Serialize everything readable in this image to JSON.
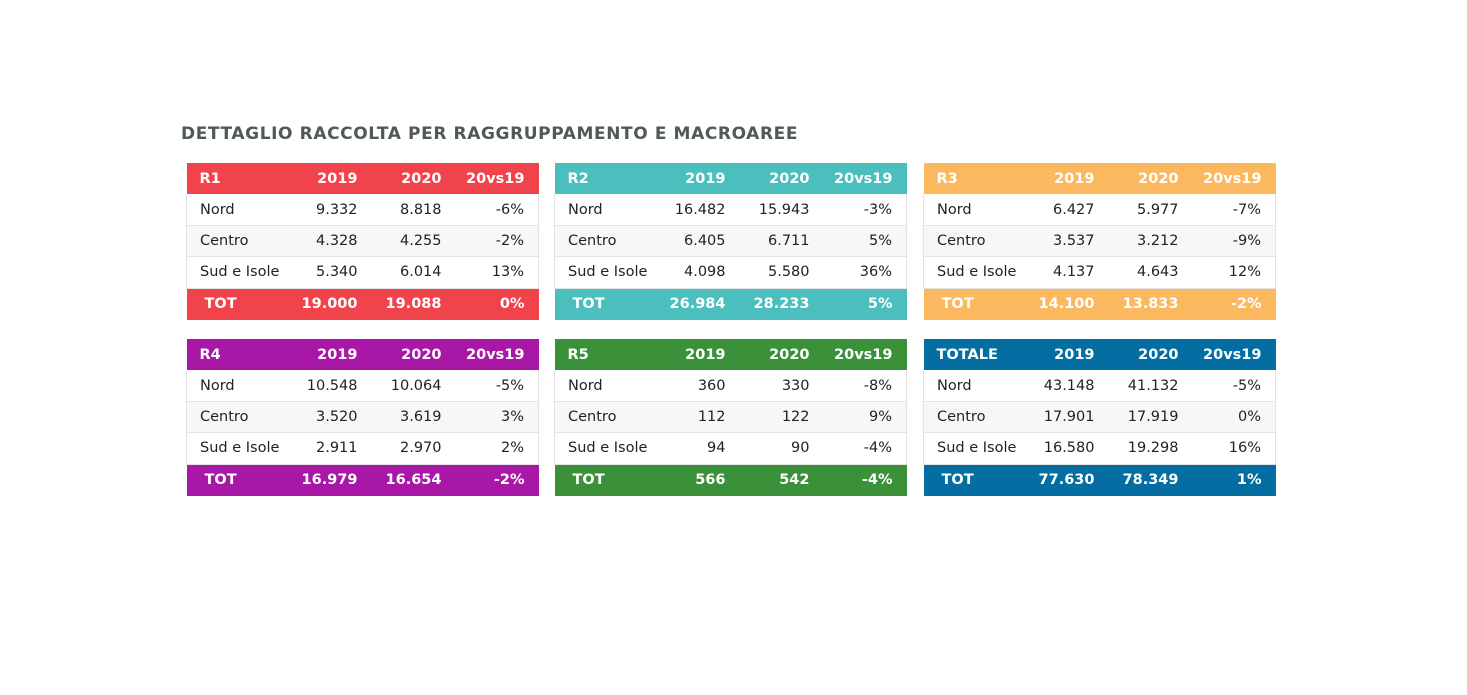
{
  "title": "DETTAGLIO RACCOLTA PER RAGGRUPPAMENTO E MACROAREE",
  "colors": {
    "title_text": "#4f5a55",
    "r1": "#f0434c",
    "r2": "#4bbfbd",
    "r3": "#fbb85f",
    "r4": "#a817a6",
    "r5": "#3b913a",
    "totale": "#046ea3"
  },
  "tables": {
    "r1": {
      "header": {
        "name": "R1",
        "y2019": "2019",
        "y2020": "2020",
        "delta": "20vs19"
      },
      "rows": [
        {
          "name": "Nord",
          "y2019": "9.332",
          "y2020": "8.818",
          "delta": "-6%"
        },
        {
          "name": "Centro",
          "y2019": "4.328",
          "y2020": "4.255",
          "delta": "-2%"
        },
        {
          "name": "Sud e Isole",
          "y2019": "5.340",
          "y2020": "6.014",
          "delta": "13%"
        }
      ],
      "total": {
        "name": "TOT",
        "y2019": "19.000",
        "y2020": "19.088",
        "delta": "0%"
      }
    },
    "r2": {
      "header": {
        "name": "R2",
        "y2019": "2019",
        "y2020": "2020",
        "delta": "20vs19"
      },
      "rows": [
        {
          "name": "Nord",
          "y2019": "16.482",
          "y2020": "15.943",
          "delta": "-3%"
        },
        {
          "name": "Centro",
          "y2019": "6.405",
          "y2020": "6.711",
          "delta": "5%"
        },
        {
          "name": "Sud e Isole",
          "y2019": "4.098",
          "y2020": "5.580",
          "delta": "36%"
        }
      ],
      "total": {
        "name": "TOT",
        "y2019": "26.984",
        "y2020": "28.233",
        "delta": "5%"
      }
    },
    "r3": {
      "header": {
        "name": "R3",
        "y2019": "2019",
        "y2020": "2020",
        "delta": "20vs19"
      },
      "rows": [
        {
          "name": "Nord",
          "y2019": "6.427",
          "y2020": "5.977",
          "delta": "-7%"
        },
        {
          "name": "Centro",
          "y2019": "3.537",
          "y2020": "3.212",
          "delta": "-9%"
        },
        {
          "name": "Sud e Isole",
          "y2019": "4.137",
          "y2020": "4.643",
          "delta": "12%"
        }
      ],
      "total": {
        "name": "TOT",
        "y2019": "14.100",
        "y2020": "13.833",
        "delta": "-2%"
      }
    },
    "r4": {
      "header": {
        "name": "R4",
        "y2019": "2019",
        "y2020": "2020",
        "delta": "20vs19"
      },
      "rows": [
        {
          "name": "Nord",
          "y2019": "10.548",
          "y2020": "10.064",
          "delta": "-5%"
        },
        {
          "name": "Centro",
          "y2019": "3.520",
          "y2020": "3.619",
          "delta": "3%"
        },
        {
          "name": "Sud e Isole",
          "y2019": "2.911",
          "y2020": "2.970",
          "delta": "2%"
        }
      ],
      "total": {
        "name": "TOT",
        "y2019": "16.979",
        "y2020": "16.654",
        "delta": "-2%"
      }
    },
    "r5": {
      "header": {
        "name": "R5",
        "y2019": "2019",
        "y2020": "2020",
        "delta": "20vs19"
      },
      "rows": [
        {
          "name": "Nord",
          "y2019": "360",
          "y2020": "330",
          "delta": "-8%"
        },
        {
          "name": "Centro",
          "y2019": "112",
          "y2020": "122",
          "delta": "9%"
        },
        {
          "name": "Sud e Isole",
          "y2019": "94",
          "y2020": "90",
          "delta": "-4%"
        }
      ],
      "total": {
        "name": "TOT",
        "y2019": "566",
        "y2020": "542",
        "delta": "-4%"
      }
    },
    "totale": {
      "header": {
        "name": "TOTALE",
        "y2019": "2019",
        "y2020": "2020",
        "delta": "20vs19"
      },
      "rows": [
        {
          "name": "Nord",
          "y2019": "43.148",
          "y2020": "41.132",
          "delta": "-5%"
        },
        {
          "name": "Centro",
          "y2019": "17.901",
          "y2020": "17.919",
          "delta": "0%"
        },
        {
          "name": "Sud e Isole",
          "y2019": "16.580",
          "y2020": "19.298",
          "delta": "16%"
        }
      ],
      "total": {
        "name": "TOT",
        "y2019": "77.630",
        "y2020": "78.349",
        "delta": "1%"
      }
    }
  }
}
